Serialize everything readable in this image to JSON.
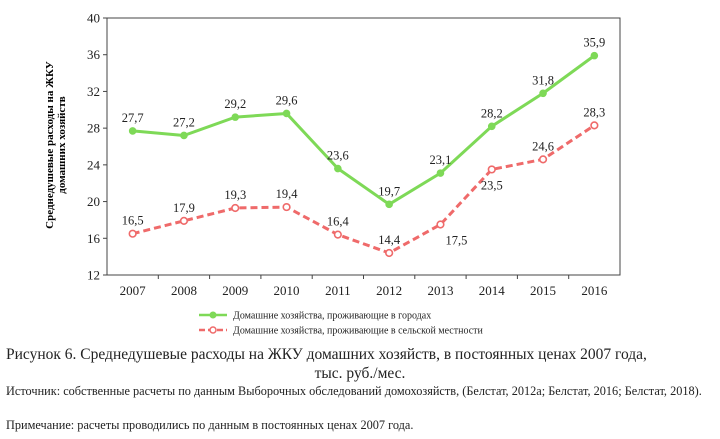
{
  "chart_data": {
    "type": "line",
    "categories": [
      "2007",
      "2008",
      "2009",
      "2010",
      "2011",
      "2012",
      "2013",
      "2014",
      "2015",
      "2016"
    ],
    "series": [
      {
        "name": "Домашние хозяйства, проживающие в городах",
        "values": [
          27.7,
          27.2,
          29.2,
          29.6,
          23.6,
          19.7,
          23.1,
          28.2,
          31.8,
          35.9
        ],
        "labels": [
          "27,7",
          "27,2",
          "29,2",
          "29,6",
          "23,6",
          "19,7",
          "23,1",
          "28,2",
          "31,8",
          "35,9"
        ],
        "color": "#7ed957",
        "style": "solid-filled-markers"
      },
      {
        "name": "Домашние хозяйства, проживающие в сельской местности",
        "values": [
          16.5,
          17.9,
          19.3,
          19.4,
          16.4,
          14.4,
          17.5,
          23.5,
          24.6,
          28.3
        ],
        "labels": [
          "16,5",
          "17,9",
          "19,3",
          "19,4",
          "16,4",
          "14,4",
          "17,5",
          "23,5",
          "24,6",
          "28,3"
        ],
        "color": "#ef6a6a",
        "style": "dashed-hollow-markers"
      }
    ],
    "ylabel_line1": "Среднедушевые расходы на ЖКУ",
    "ylabel_line2": "домашних хозяйств",
    "ylim": [
      12,
      40
    ],
    "yticks": [
      12,
      16,
      20,
      24,
      28,
      32,
      36,
      40
    ],
    "grid": false,
    "legend_position": "bottom"
  },
  "caption": {
    "line1": "Рисунок 6. Среднедушевые расходы на ЖКУ домашних хозяйств, в постоянных ценах 2007 года,",
    "line2": "тыс. руб./мес."
  },
  "source_text": "Источник: собственные расчеты по данным Выборочных обследований домохозяйств, (Белстат, 2012a; Белстат, 2016; Белстат, 2018).",
  "note_text": "Примечание: расчеты проводились по данным в постоянных ценах 2007 года."
}
